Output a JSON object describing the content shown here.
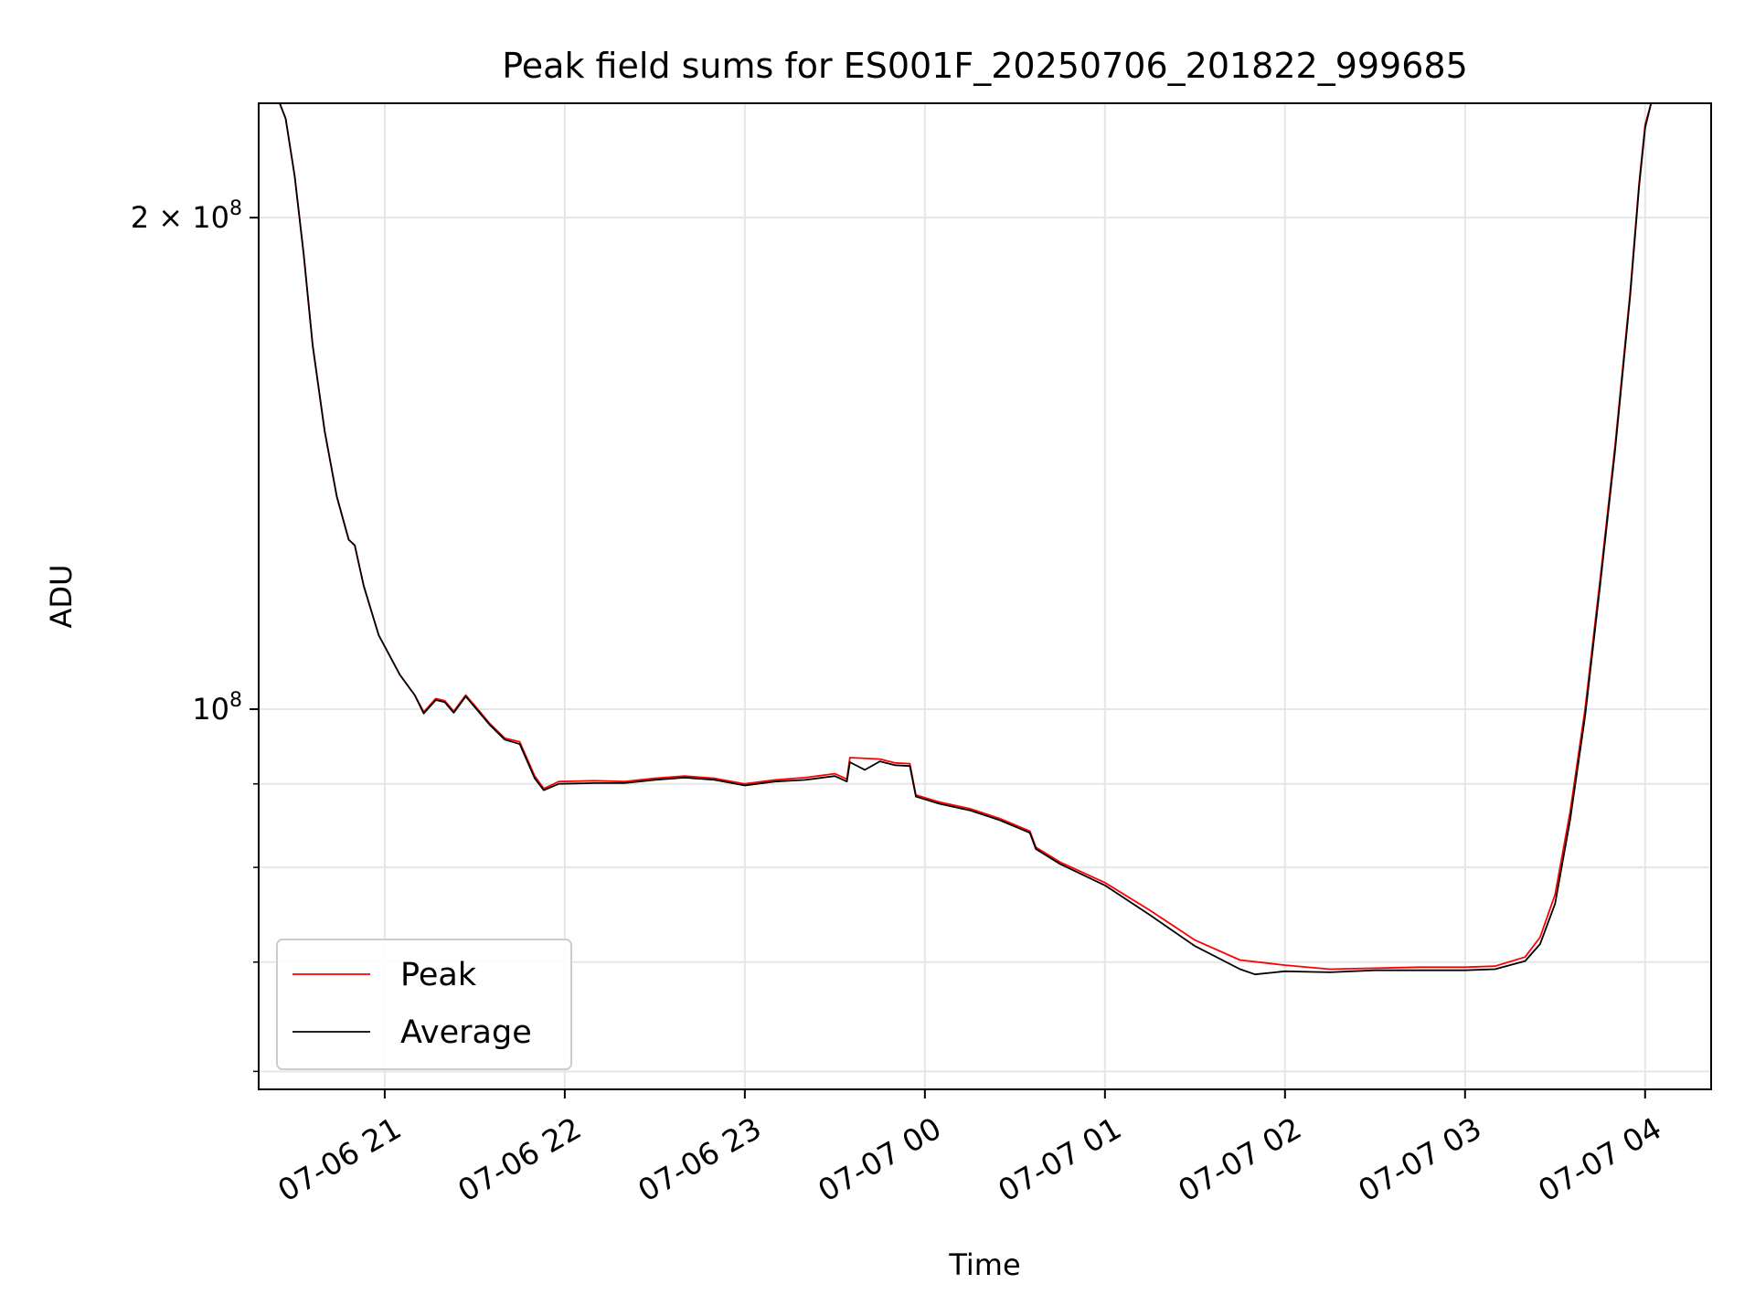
{
  "chart_data": {
    "type": "line",
    "title": "Peak field sums for ES001F_20250706_201822_999685",
    "xlabel": "Time",
    "ylabel": "ADU",
    "y_scale": "log",
    "ylim": [
      58500000,
      235000000
    ],
    "xlim": [
      "2025-07-06 20:18",
      "2025-07-07 04:22"
    ],
    "grid": true,
    "legend_position": "lower-left",
    "x_ticks": [
      {
        "t": "2025-07-06 21:00",
        "label": "07-06 21"
      },
      {
        "t": "2025-07-06 22:00",
        "label": "07-06 22"
      },
      {
        "t": "2025-07-06 23:00",
        "label": "07-06 23"
      },
      {
        "t": "2025-07-07 00:00",
        "label": "07-07 00"
      },
      {
        "t": "2025-07-07 01:00",
        "label": "07-07 01"
      },
      {
        "t": "2025-07-07 02:00",
        "label": "07-07 02"
      },
      {
        "t": "2025-07-07 03:00",
        "label": "07-07 03"
      },
      {
        "t": "2025-07-07 04:00",
        "label": "07-07 04"
      }
    ],
    "y_major_ticks": [
      {
        "value": 100000000,
        "base": "10",
        "exp": "8",
        "coef": ""
      },
      {
        "value": 200000000,
        "base": "10",
        "exp": "8",
        "coef": "2 × "
      }
    ],
    "y_minor_ticks": [
      60000000,
      70000000,
      80000000,
      90000000
    ],
    "series": [
      {
        "name": "Peak",
        "color": "#ff0000",
        "points": [
          [
            "2025-07-06 20:18",
            235000000
          ],
          [
            "2025-07-06 20:25",
            235000000
          ],
          [
            "2025-07-06 20:27",
            230000000
          ],
          [
            "2025-07-06 20:30",
            212000000
          ],
          [
            "2025-07-06 20:33",
            190000000
          ],
          [
            "2025-07-06 20:36",
            167000000
          ],
          [
            "2025-07-06 20:40",
            148000000
          ],
          [
            "2025-07-06 20:44",
            135000000
          ],
          [
            "2025-07-06 20:48",
            127000000
          ],
          [
            "2025-07-06 20:50",
            126000000
          ],
          [
            "2025-07-06 20:53",
            119000000
          ],
          [
            "2025-07-06 20:58",
            111000000
          ],
          [
            "2025-07-06 21:05",
            105000000
          ],
          [
            "2025-07-06 21:10",
            102000000
          ],
          [
            "2025-07-06 21:13",
            99600000
          ],
          [
            "2025-07-06 21:17",
            101500000
          ],
          [
            "2025-07-06 21:20",
            101200000
          ],
          [
            "2025-07-06 21:23",
            99700000
          ],
          [
            "2025-07-06 21:27",
            102000000
          ],
          [
            "2025-07-06 21:30",
            100500000
          ],
          [
            "2025-07-06 21:35",
            98000000
          ],
          [
            "2025-07-06 21:40",
            96000000
          ],
          [
            "2025-07-06 21:45",
            95500000
          ],
          [
            "2025-07-06 21:50",
            91000000
          ],
          [
            "2025-07-06 21:53",
            89400000
          ],
          [
            "2025-07-06 21:58",
            90300000
          ],
          [
            "2025-07-06 22:10",
            90400000
          ],
          [
            "2025-07-06 22:20",
            90300000
          ],
          [
            "2025-07-06 22:30",
            90700000
          ],
          [
            "2025-07-06 22:40",
            91000000
          ],
          [
            "2025-07-06 22:50",
            90700000
          ],
          [
            "2025-07-06 23:00",
            90000000
          ],
          [
            "2025-07-06 23:10",
            90500000
          ],
          [
            "2025-07-06 23:20",
            90800000
          ],
          [
            "2025-07-06 23:30",
            91300000
          ],
          [
            "2025-07-06 23:34",
            90600000
          ],
          [
            "2025-07-06 23:35",
            93400000
          ],
          [
            "2025-07-06 23:45",
            93200000
          ],
          [
            "2025-07-06 23:50",
            92700000
          ],
          [
            "2025-07-06 23:55",
            92600000
          ],
          [
            "2025-07-06 23:57",
            88600000
          ],
          [
            "2025-07-07 00:05",
            87700000
          ],
          [
            "2025-07-07 00:15",
            86900000
          ],
          [
            "2025-07-07 00:25",
            85700000
          ],
          [
            "2025-07-07 00:35",
            84200000
          ],
          [
            "2025-07-07 00:37",
            82300000
          ],
          [
            "2025-07-07 00:45",
            80600000
          ],
          [
            "2025-07-07 01:00",
            78300000
          ],
          [
            "2025-07-07 01:15",
            75300000
          ],
          [
            "2025-07-07 01:30",
            72200000
          ],
          [
            "2025-07-07 01:45",
            70200000
          ],
          [
            "2025-07-07 02:00",
            69700000
          ],
          [
            "2025-07-07 02:15",
            69300000
          ],
          [
            "2025-07-07 02:30",
            69400000
          ],
          [
            "2025-07-07 02:45",
            69500000
          ],
          [
            "2025-07-07 03:00",
            69500000
          ],
          [
            "2025-07-07 03:10",
            69600000
          ],
          [
            "2025-07-07 03:20",
            70500000
          ],
          [
            "2025-07-07 03:25",
            72500000
          ],
          [
            "2025-07-07 03:30",
            77000000
          ],
          [
            "2025-07-07 03:35",
            86500000
          ],
          [
            "2025-07-07 03:40",
            100000000
          ],
          [
            "2025-07-07 03:45",
            120000000
          ],
          [
            "2025-07-07 03:50",
            145000000
          ],
          [
            "2025-07-07 03:55",
            180000000
          ],
          [
            "2025-07-07 03:58",
            210000000
          ],
          [
            "2025-07-07 04:00",
            228000000
          ],
          [
            "2025-07-07 04:02",
            235000000
          ],
          [
            "2025-07-07 04:22",
            235000000
          ]
        ]
      },
      {
        "name": "Average",
        "color": "#000000",
        "points": [
          [
            "2025-07-06 20:18",
            235000000
          ],
          [
            "2025-07-06 20:25",
            235000000
          ],
          [
            "2025-07-06 20:27",
            230000000
          ],
          [
            "2025-07-06 20:30",
            212000000
          ],
          [
            "2025-07-06 20:33",
            190000000
          ],
          [
            "2025-07-06 20:36",
            167000000
          ],
          [
            "2025-07-06 20:40",
            148000000
          ],
          [
            "2025-07-06 20:44",
            135000000
          ],
          [
            "2025-07-06 20:48",
            127000000
          ],
          [
            "2025-07-06 20:50",
            126000000
          ],
          [
            "2025-07-06 20:53",
            119000000
          ],
          [
            "2025-07-06 20:58",
            111000000
          ],
          [
            "2025-07-06 21:05",
            105000000
          ],
          [
            "2025-07-06 21:10",
            102000000
          ],
          [
            "2025-07-06 21:13",
            99400000
          ],
          [
            "2025-07-06 21:17",
            101300000
          ],
          [
            "2025-07-06 21:20",
            101000000
          ],
          [
            "2025-07-06 21:23",
            99500000
          ],
          [
            "2025-07-06 21:27",
            101800000
          ],
          [
            "2025-07-06 21:30",
            100300000
          ],
          [
            "2025-07-06 21:35",
            97800000
          ],
          [
            "2025-07-06 21:40",
            95800000
          ],
          [
            "2025-07-06 21:45",
            95200000
          ],
          [
            "2025-07-06 21:50",
            90700000
          ],
          [
            "2025-07-06 21:53",
            89200000
          ],
          [
            "2025-07-06 21:58",
            90000000
          ],
          [
            "2025-07-06 22:10",
            90100000
          ],
          [
            "2025-07-06 22:20",
            90100000
          ],
          [
            "2025-07-06 22:30",
            90500000
          ],
          [
            "2025-07-06 22:40",
            90800000
          ],
          [
            "2025-07-06 22:50",
            90500000
          ],
          [
            "2025-07-06 23:00",
            89800000
          ],
          [
            "2025-07-06 23:10",
            90300000
          ],
          [
            "2025-07-06 23:20",
            90500000
          ],
          [
            "2025-07-06 23:30",
            91000000
          ],
          [
            "2025-07-06 23:34",
            90300000
          ],
          [
            "2025-07-06 23:35",
            92800000
          ],
          [
            "2025-07-06 23:40",
            91800000
          ],
          [
            "2025-07-06 23:45",
            92900000
          ],
          [
            "2025-07-06 23:50",
            92400000
          ],
          [
            "2025-07-06 23:55",
            92300000
          ],
          [
            "2025-07-06 23:57",
            88400000
          ],
          [
            "2025-07-07 00:05",
            87500000
          ],
          [
            "2025-07-07 00:15",
            86700000
          ],
          [
            "2025-07-07 00:25",
            85500000
          ],
          [
            "2025-07-07 00:35",
            84000000
          ],
          [
            "2025-07-07 00:37",
            82100000
          ],
          [
            "2025-07-07 00:45",
            80400000
          ],
          [
            "2025-07-07 01:00",
            78000000
          ],
          [
            "2025-07-07 01:15",
            74800000
          ],
          [
            "2025-07-07 01:30",
            71600000
          ],
          [
            "2025-07-07 01:45",
            69300000
          ],
          [
            "2025-07-07 01:50",
            68800000
          ],
          [
            "2025-07-07 02:00",
            69100000
          ],
          [
            "2025-07-07 02:15",
            69000000
          ],
          [
            "2025-07-07 02:30",
            69200000
          ],
          [
            "2025-07-07 02:45",
            69200000
          ],
          [
            "2025-07-07 03:00",
            69200000
          ],
          [
            "2025-07-07 03:10",
            69300000
          ],
          [
            "2025-07-07 03:20",
            70100000
          ],
          [
            "2025-07-07 03:25",
            71800000
          ],
          [
            "2025-07-07 03:30",
            76000000
          ],
          [
            "2025-07-07 03:35",
            85500000
          ],
          [
            "2025-07-07 03:40",
            99000000
          ],
          [
            "2025-07-07 03:45",
            119000000
          ],
          [
            "2025-07-07 03:50",
            144000000
          ],
          [
            "2025-07-07 03:55",
            179000000
          ],
          [
            "2025-07-07 03:58",
            209000000
          ],
          [
            "2025-07-07 04:00",
            227000000
          ],
          [
            "2025-07-07 04:02",
            235000000
          ],
          [
            "2025-07-07 04:22",
            235000000
          ]
        ]
      }
    ]
  }
}
